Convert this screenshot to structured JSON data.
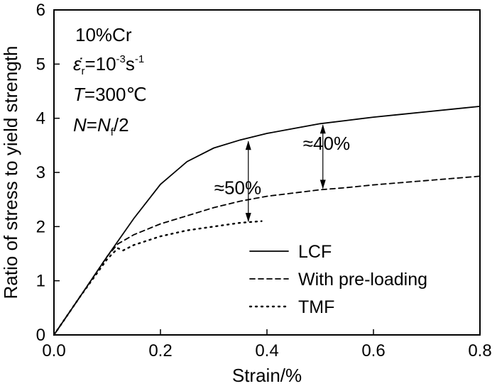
{
  "chart_data": {
    "type": "line",
    "title": "",
    "xlabel": "Strain/%",
    "ylabel": "Ratio of stress to yield strength",
    "xlim": [
      0.0,
      0.8
    ],
    "ylim": [
      0,
      6
    ],
    "xticks": [
      0.0,
      0.2,
      0.4,
      0.6,
      0.8
    ],
    "xtick_labels": [
      "0.0",
      "0.2",
      "0.4",
      "0.6",
      "0.8"
    ],
    "yticks": [
      0,
      1,
      2,
      3,
      4,
      5,
      6
    ],
    "ytick_labels": [
      "0",
      "1",
      "2",
      "3",
      "4",
      "5",
      "6"
    ],
    "grid": false,
    "legend_position": "bottom-right",
    "series": [
      {
        "name": "LCF",
        "style": "solid",
        "x": [
          0.0,
          0.05,
          0.1,
          0.15,
          0.2,
          0.25,
          0.3,
          0.35,
          0.4,
          0.45,
          0.5,
          0.55,
          0.6,
          0.65,
          0.7,
          0.75,
          0.8
        ],
        "y": [
          0.0,
          0.72,
          1.45,
          2.15,
          2.78,
          3.2,
          3.45,
          3.6,
          3.72,
          3.81,
          3.9,
          3.96,
          4.02,
          4.07,
          4.12,
          4.17,
          4.22
        ]
      },
      {
        "name": "With pre-loading",
        "style": "dashed",
        "x": [
          0.0,
          0.05,
          0.1,
          0.12,
          0.15,
          0.2,
          0.25,
          0.3,
          0.35,
          0.4,
          0.45,
          0.5,
          0.55,
          0.6,
          0.65,
          0.7,
          0.75,
          0.8
        ],
        "y": [
          0.0,
          0.72,
          1.45,
          1.68,
          1.85,
          2.05,
          2.2,
          2.35,
          2.47,
          2.56,
          2.62,
          2.68,
          2.72,
          2.77,
          2.81,
          2.85,
          2.89,
          2.93
        ]
      },
      {
        "name": "TMF",
        "style": "dotted",
        "x": [
          0.0,
          0.05,
          0.1,
          0.12,
          0.13,
          0.15,
          0.2,
          0.25,
          0.3,
          0.35,
          0.39
        ],
        "y": [
          0.0,
          0.72,
          1.4,
          1.6,
          1.56,
          1.66,
          1.82,
          1.93,
          2.0,
          2.07,
          2.1
        ]
      }
    ],
    "annotations": [
      {
        "text": "≈50%",
        "x": 0.365,
        "from_y": 3.6,
        "to_y": 2.07
      },
      {
        "text": "≈40%",
        "x": 0.505,
        "from_y": 3.9,
        "to_y": 2.68
      }
    ],
    "conditions": {
      "material": "10%Cr",
      "strain_rate_symbol": "ε̇",
      "strain_rate_sub": "r",
      "strain_rate_value": "=10",
      "strain_rate_exp": "-3",
      "strain_rate_unit": "s",
      "strain_rate_unit_exp": "-1",
      "temp_symbol": "T",
      "temp_value": "=300℃",
      "cycle_symbol": "N",
      "cycle_eq": "=",
      "cycle_symbol2": "N",
      "cycle_sub": "f",
      "cycle_value": "/2"
    }
  }
}
